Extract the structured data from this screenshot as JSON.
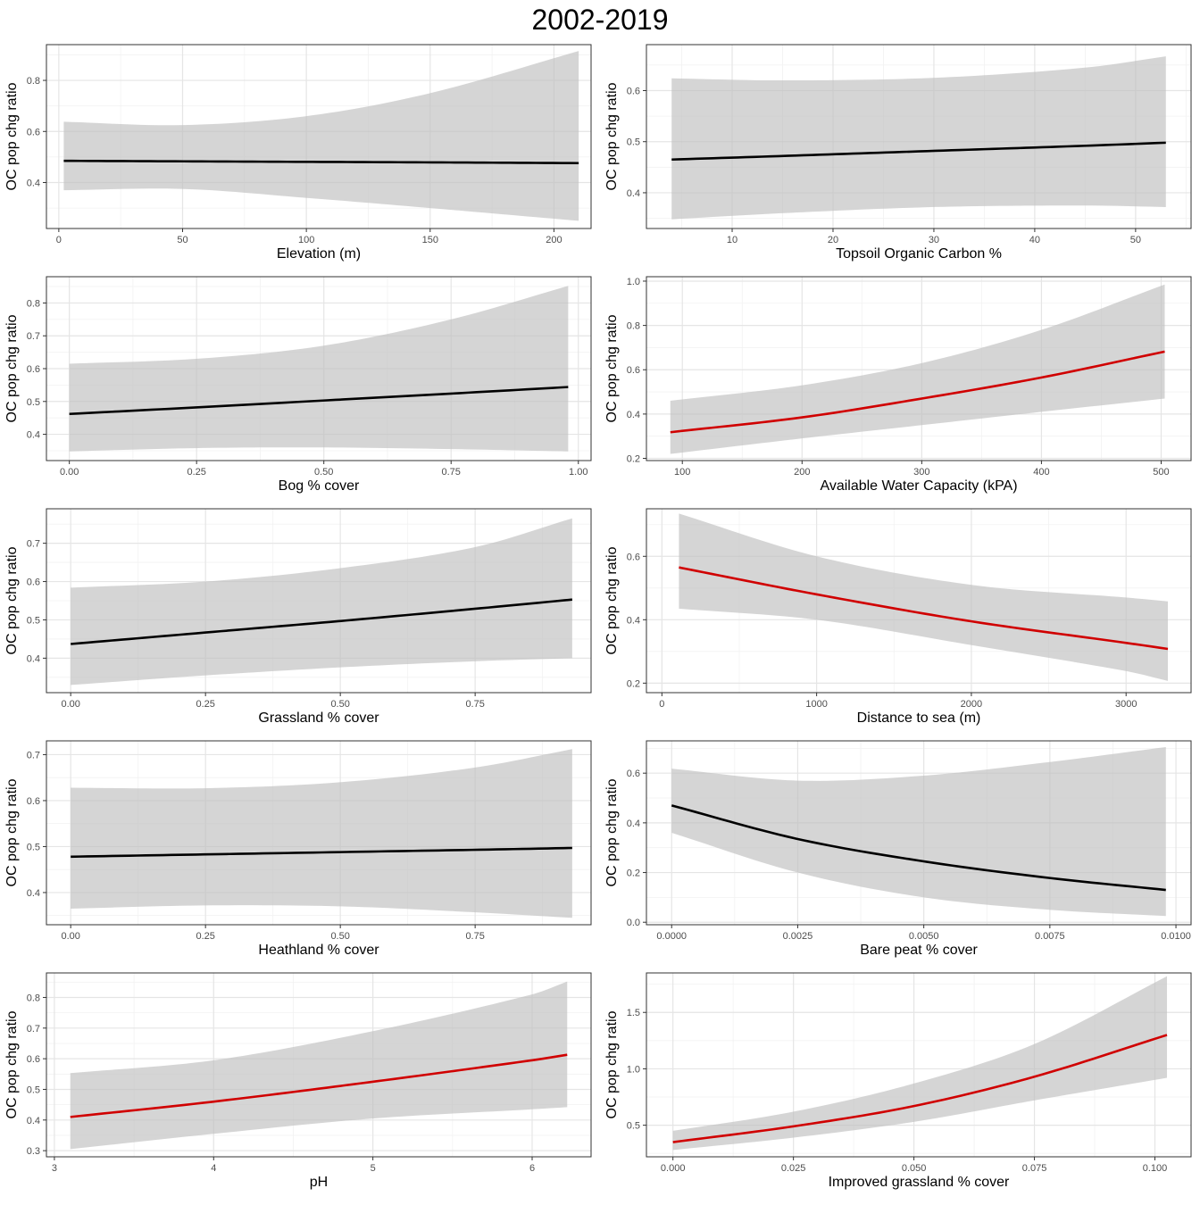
{
  "figure_title": "2002-2019",
  "colors": {
    "ribbon": "#bfbfbf",
    "neutral_line": "#000000",
    "significant_line": "#d00000",
    "grid_major": "#e5e5e5",
    "grid_minor": "#f2f2f2",
    "frame": "#333333"
  },
  "chart_data": [
    {
      "type": "line",
      "title": "",
      "xlabel": "Elevation (m)",
      "ylabel": "OC pop chg ratio",
      "xlim": [
        -5,
        215
      ],
      "ylim": [
        0.22,
        0.94
      ],
      "xticks": [
        0,
        50,
        100,
        150,
        200
      ],
      "xtick_labels": [
        "0",
        "50",
        "100",
        "150",
        "200"
      ],
      "yticks": [
        0.4,
        0.6,
        0.8
      ],
      "ytick_labels": [
        "0.4",
        "0.6",
        "0.8"
      ],
      "line_color": "neutral",
      "x": [
        2,
        50,
        100,
        150,
        210
      ],
      "y": [
        0.485,
        0.483,
        0.481,
        0.479,
        0.476
      ],
      "lower": [
        0.37,
        0.375,
        0.34,
        0.3,
        0.25
      ],
      "upper": [
        0.638,
        0.625,
        0.66,
        0.75,
        0.915
      ]
    },
    {
      "type": "line",
      "title": "",
      "xlabel": "Topsoil Organic Carbon %",
      "ylabel": "OC pop chg ratio",
      "xlim": [
        1.5,
        55.5
      ],
      "ylim": [
        0.33,
        0.69
      ],
      "xticks": [
        10,
        20,
        30,
        40,
        50
      ],
      "xtick_labels": [
        "10",
        "20",
        "30",
        "40",
        "50"
      ],
      "yticks": [
        0.4,
        0.5,
        0.6
      ],
      "ytick_labels": [
        "0.4",
        "0.5",
        "0.6"
      ],
      "line_color": "neutral",
      "x": [
        4,
        15,
        30,
        45,
        53
      ],
      "y": [
        0.465,
        0.472,
        0.482,
        0.492,
        0.498
      ],
      "lower": [
        0.348,
        0.36,
        0.372,
        0.375,
        0.372
      ],
      "upper": [
        0.624,
        0.62,
        0.625,
        0.645,
        0.667
      ]
    },
    {
      "type": "line",
      "title": "",
      "xlabel": "Bog % cover",
      "ylabel": "OC pop chg ratio",
      "xlim": [
        -0.045,
        1.025
      ],
      "ylim": [
        0.32,
        0.88
      ],
      "xticks": [
        0,
        0.25,
        0.5,
        0.75,
        1.0
      ],
      "xtick_labels": [
        "0.00",
        "0.25",
        "0.50",
        "0.75",
        "1.00"
      ],
      "yticks": [
        0.4,
        0.5,
        0.6,
        0.7,
        0.8
      ],
      "ytick_labels": [
        "0.4",
        "0.5",
        "0.6",
        "0.7",
        "0.8"
      ],
      "line_color": "neutral",
      "x": [
        0,
        0.25,
        0.5,
        0.75,
        0.98
      ],
      "y": [
        0.462,
        0.482,
        0.503,
        0.524,
        0.544
      ],
      "lower": [
        0.348,
        0.358,
        0.36,
        0.355,
        0.348
      ],
      "upper": [
        0.615,
        0.63,
        0.67,
        0.75,
        0.852
      ]
    },
    {
      "type": "line",
      "title": "",
      "xlabel": "Available Water Capacity (kPA)",
      "ylabel": "OC pop chg ratio",
      "xlim": [
        70,
        525
      ],
      "ylim": [
        0.19,
        1.02
      ],
      "xticks": [
        100,
        200,
        300,
        400,
        500
      ],
      "xtick_labels": [
        "100",
        "200",
        "300",
        "400",
        "500"
      ],
      "yticks": [
        0.2,
        0.4,
        0.6,
        0.8,
        1.0
      ],
      "ytick_labels": [
        "0.2",
        "0.4",
        "0.6",
        "0.8",
        "1.0"
      ],
      "line_color": "significant",
      "x": [
        90,
        200,
        300,
        400,
        503
      ],
      "y": [
        0.318,
        0.385,
        0.47,
        0.565,
        0.682
      ],
      "lower": [
        0.22,
        0.29,
        0.35,
        0.41,
        0.47
      ],
      "upper": [
        0.46,
        0.53,
        0.63,
        0.78,
        0.985
      ]
    },
    {
      "type": "line",
      "title": "",
      "xlabel": "Grassland % cover",
      "ylabel": "OC pop chg ratio",
      "xlim": [
        -0.045,
        0.965
      ],
      "ylim": [
        0.31,
        0.79
      ],
      "xticks": [
        0,
        0.25,
        0.5,
        0.75
      ],
      "xtick_labels": [
        "0.00",
        "0.25",
        "0.50",
        "0.75"
      ],
      "yticks": [
        0.4,
        0.5,
        0.6,
        0.7
      ],
      "ytick_labels": [
        "0.4",
        "0.5",
        "0.6",
        "0.7"
      ],
      "line_color": "neutral",
      "x": [
        0,
        0.25,
        0.5,
        0.75,
        0.93
      ],
      "y": [
        0.437,
        0.467,
        0.497,
        0.529,
        0.553
      ],
      "lower": [
        0.33,
        0.355,
        0.376,
        0.392,
        0.4
      ],
      "upper": [
        0.584,
        0.6,
        0.635,
        0.69,
        0.765
      ]
    },
    {
      "type": "line",
      "title": "",
      "xlabel": "Distance to sea (m)",
      "ylabel": "OC pop chg ratio",
      "xlim": [
        -100,
        3420
      ],
      "ylim": [
        0.17,
        0.75
      ],
      "xticks": [
        0,
        1000,
        2000,
        3000
      ],
      "xtick_labels": [
        "0",
        "1000",
        "2000",
        "3000"
      ],
      "yticks": [
        0.2,
        0.4,
        0.6
      ],
      "ytick_labels": [
        "0.2",
        "0.4",
        "0.6"
      ],
      "line_color": "significant",
      "x": [
        110,
        1000,
        2000,
        3000,
        3270
      ],
      "y": [
        0.565,
        0.48,
        0.395,
        0.327,
        0.308
      ],
      "lower": [
        0.435,
        0.4,
        0.32,
        0.238,
        0.207
      ],
      "upper": [
        0.735,
        0.6,
        0.51,
        0.47,
        0.458
      ]
    },
    {
      "type": "line",
      "title": "",
      "xlabel": "Heathland % cover",
      "ylabel": "OC pop chg ratio",
      "xlim": [
        -0.045,
        0.965
      ],
      "ylim": [
        0.33,
        0.73
      ],
      "xticks": [
        0,
        0.25,
        0.5,
        0.75
      ],
      "xtick_labels": [
        "0.00",
        "0.25",
        "0.50",
        "0.75"
      ],
      "yticks": [
        0.4,
        0.5,
        0.6,
        0.7
      ],
      "ytick_labels": [
        "0.4",
        "0.5",
        "0.6",
        "0.7"
      ],
      "line_color": "neutral",
      "x": [
        0,
        0.25,
        0.5,
        0.75,
        0.93
      ],
      "y": [
        0.478,
        0.483,
        0.488,
        0.493,
        0.497
      ],
      "lower": [
        0.365,
        0.372,
        0.37,
        0.357,
        0.345
      ],
      "upper": [
        0.628,
        0.627,
        0.64,
        0.672,
        0.712
      ]
    },
    {
      "type": "line",
      "title": "",
      "xlabel": "Bare peat % cover",
      "ylabel": "OC pop chg ratio",
      "xlim": [
        -0.0005,
        0.0103
      ],
      "ylim": [
        -0.01,
        0.73
      ],
      "xticks": [
        0,
        0.0025,
        0.005,
        0.0075,
        0.01
      ],
      "xtick_labels": [
        "0.0000",
        "0.0025",
        "0.0050",
        "0.0075",
        "0.0100"
      ],
      "yticks": [
        0,
        0.2,
        0.4,
        0.6
      ],
      "ytick_labels": [
        "0.0",
        "0.2",
        "0.4",
        "0.6"
      ],
      "line_color": "neutral",
      "x": [
        0,
        0.0025,
        0.005,
        0.0075,
        0.0098
      ],
      "y": [
        0.47,
        0.335,
        0.245,
        0.178,
        0.13
      ],
      "lower": [
        0.36,
        0.2,
        0.1,
        0.05,
        0.025
      ],
      "upper": [
        0.618,
        0.57,
        0.59,
        0.645,
        0.705
      ]
    },
    {
      "type": "line",
      "title": "",
      "xlabel": "pH",
      "ylabel": "OC pop chg ratio",
      "xlim": [
        2.95,
        6.37
      ],
      "ylim": [
        0.28,
        0.88
      ],
      "xticks": [
        3,
        4,
        5,
        6
      ],
      "xtick_labels": [
        "3",
        "4",
        "5",
        "6"
      ],
      "yticks": [
        0.3,
        0.4,
        0.5,
        0.6,
        0.7,
        0.8
      ],
      "ytick_labels": [
        "0.3",
        "0.4",
        "0.5",
        "0.6",
        "0.7",
        "0.8"
      ],
      "line_color": "significant",
      "x": [
        3.1,
        4,
        5,
        6,
        6.22
      ],
      "y": [
        0.41,
        0.46,
        0.525,
        0.595,
        0.613
      ],
      "lower": [
        0.305,
        0.355,
        0.405,
        0.435,
        0.442
      ],
      "upper": [
        0.553,
        0.595,
        0.69,
        0.81,
        0.852
      ]
    },
    {
      "type": "line",
      "title": "",
      "xlabel": "Improved grassland % cover",
      "ylabel": "OC pop chg ratio",
      "xlim": [
        -0.0055,
        0.1075
      ],
      "ylim": [
        0.22,
        1.85
      ],
      "xticks": [
        0,
        0.025,
        0.05,
        0.075,
        0.1
      ],
      "xtick_labels": [
        "0.000",
        "0.025",
        "0.050",
        "0.075",
        "0.100"
      ],
      "yticks": [
        0.5,
        1.0,
        1.5
      ],
      "ytick_labels": [
        "0.5",
        "1.0",
        "1.5"
      ],
      "line_color": "significant",
      "x": [
        0,
        0.025,
        0.05,
        0.075,
        0.1025
      ],
      "y": [
        0.35,
        0.49,
        0.67,
        0.93,
        1.3
      ],
      "lower": [
        0.28,
        0.39,
        0.53,
        0.72,
        0.92
      ],
      "upper": [
        0.45,
        0.62,
        0.87,
        1.22,
        1.82
      ]
    }
  ]
}
